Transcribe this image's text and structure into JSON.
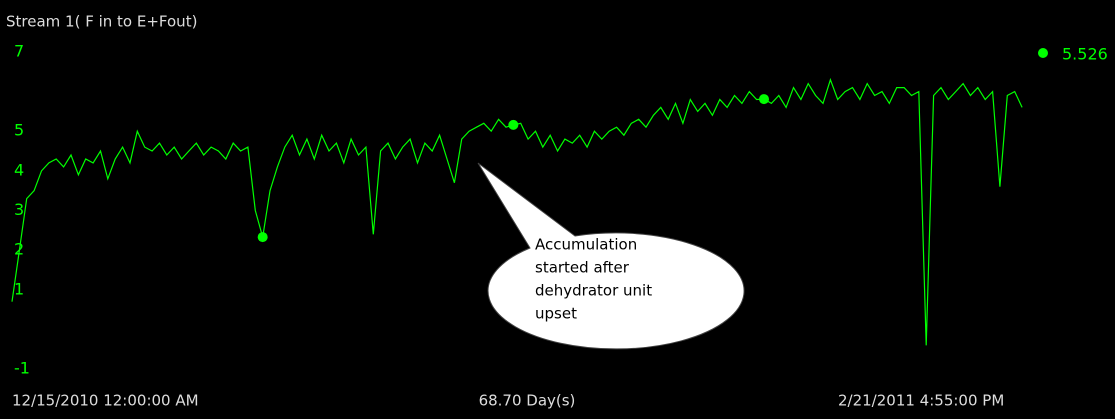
{
  "chart_data": {
    "type": "line",
    "title": "Stream 1( F in  to E+Fout)",
    "x_start_label": "12/15/2010 12:00:00 AM",
    "x_span_label": "68.70 Day(s)",
    "x_end_label": "2/21/2011 4:55:00 PM",
    "xlim": [
      0,
      68.7
    ],
    "ylim": [
      -1.4,
      7.3
    ],
    "yticks": [
      7,
      5,
      4,
      3,
      2,
      1,
      -1
    ],
    "x": [
      0,
      0.5,
      1,
      1.5,
      2,
      2.5,
      3,
      3.5,
      4,
      4.5,
      5,
      5.5,
      6,
      6.5,
      7,
      7.5,
      8,
      8.5,
      9,
      9.5,
      10,
      10.5,
      11,
      11.5,
      12,
      12.5,
      13,
      13.5,
      14,
      14.5,
      15,
      15.5,
      16,
      16.5,
      17,
      17.5,
      18,
      18.5,
      19,
      19.5,
      20,
      20.5,
      21,
      21.5,
      22,
      22.5,
      23,
      23.5,
      24,
      24.5,
      25,
      25.5,
      26,
      26.5,
      27,
      27.5,
      28,
      28.5,
      29,
      29.5,
      30,
      30.5,
      31,
      31.5,
      32,
      32.5,
      33,
      33.5,
      34,
      34.5,
      35,
      35.5,
      36,
      36.5,
      37,
      37.5,
      38,
      38.5,
      39,
      39.5,
      40,
      40.5,
      41,
      41.5,
      42,
      42.5,
      43,
      43.5,
      44,
      44.5,
      45,
      45.5,
      46,
      46.5,
      47,
      47.5,
      48,
      48.5,
      49,
      49.5,
      50,
      50.5,
      51,
      51.5,
      52,
      52.5,
      53,
      53.5,
      54,
      54.5,
      55,
      55.5,
      56,
      56.5,
      57,
      57.5,
      58,
      58.5,
      59,
      59.5,
      60,
      60.5,
      61,
      61.5,
      62,
      62.5,
      63,
      63.5,
      64,
      64.5,
      65,
      65.5,
      66,
      66.5,
      67,
      67.5,
      68,
      68.5
    ],
    "series": [
      {
        "color": "#00ff00",
        "values": [
          0.7,
          2.0,
          3.3,
          3.5,
          4.0,
          4.2,
          4.3,
          4.1,
          4.4,
          3.9,
          4.3,
          4.2,
          4.5,
          3.8,
          4.3,
          4.6,
          4.2,
          5.0,
          4.6,
          4.5,
          4.7,
          4.4,
          4.6,
          4.3,
          4.5,
          4.7,
          4.4,
          4.6,
          4.5,
          4.3,
          4.7,
          4.5,
          4.6,
          3.0,
          2.33,
          3.5,
          4.1,
          4.6,
          4.9,
          4.4,
          4.8,
          4.3,
          4.9,
          4.5,
          4.7,
          4.2,
          4.8,
          4.4,
          4.6,
          2.4,
          4.5,
          4.7,
          4.3,
          4.6,
          4.8,
          4.2,
          4.7,
          4.5,
          4.9,
          4.3,
          3.7,
          4.8,
          5.0,
          5.1,
          5.2,
          5.0,
          5.3,
          5.1,
          5.16,
          5.2,
          4.8,
          5.0,
          4.6,
          4.9,
          4.5,
          4.8,
          4.7,
          4.9,
          4.6,
          5.0,
          4.8,
          5.0,
          5.1,
          4.9,
          5.2,
          5.3,
          5.1,
          5.4,
          5.6,
          5.3,
          5.7,
          5.2,
          5.8,
          5.5,
          5.7,
          5.4,
          5.8,
          5.6,
          5.9,
          5.7,
          6.0,
          5.8,
          5.81,
          5.7,
          5.9,
          5.6,
          6.1,
          5.8,
          6.2,
          5.9,
          5.7,
          6.3,
          5.8,
          6.0,
          6.1,
          5.8,
          6.2,
          5.9,
          6.0,
          5.7,
          6.1,
          6.1,
          5.9,
          6.0,
          -0.4,
          5.9,
          6.1,
          5.8,
          6.0,
          6.2,
          5.9,
          6.1,
          5.8,
          6.0,
          3.6,
          5.9,
          6.0,
          5.6
        ]
      }
    ],
    "markers": {
      "x": [
        17,
        34,
        51
      ],
      "y": [
        2.33,
        5.16,
        5.81
      ]
    },
    "current_value": 5.526,
    "annotation": {
      "lines": [
        "Accumulation",
        "started after",
        "dehydrator unit",
        "upset"
      ]
    }
  }
}
